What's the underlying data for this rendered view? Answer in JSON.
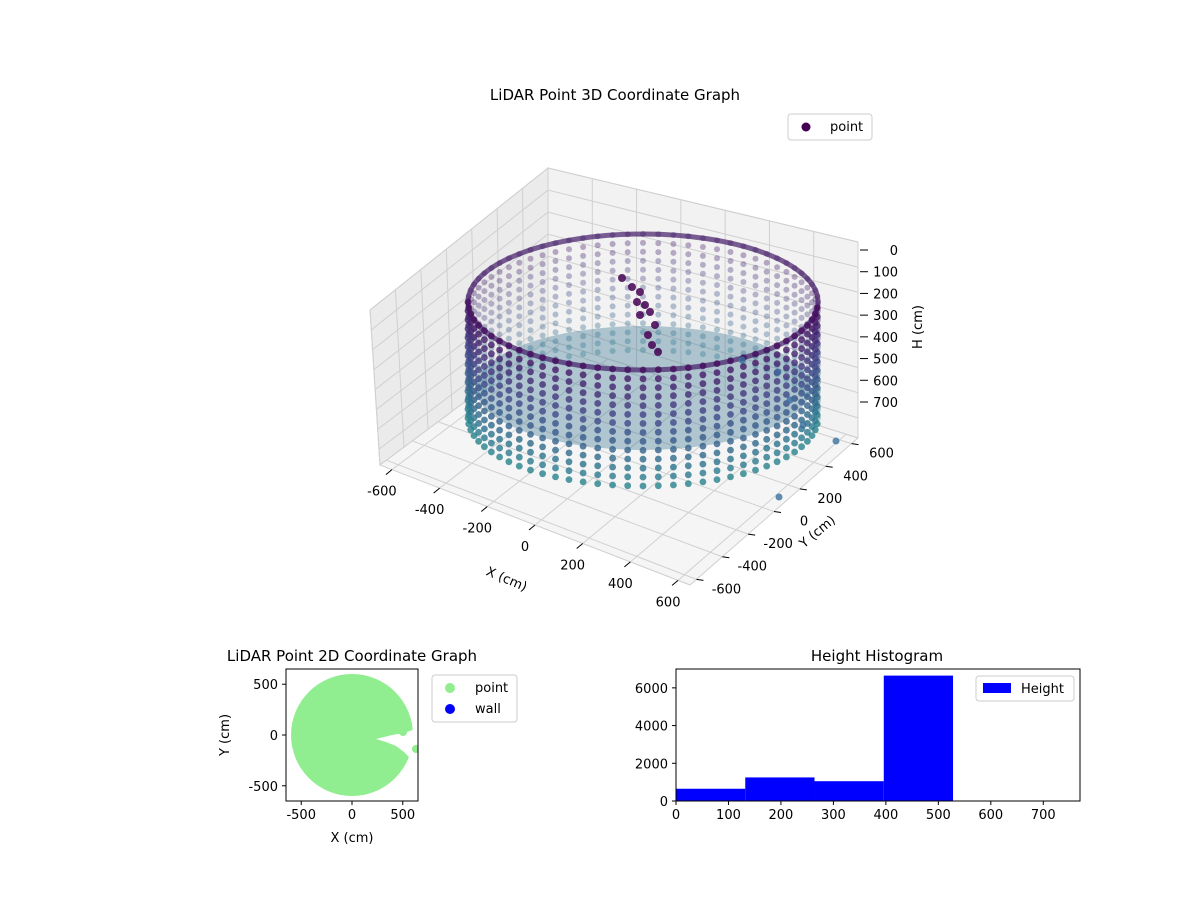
{
  "chart_data": [
    {
      "type": "scatter",
      "projection": "3d",
      "title": "LiDAR Point 3D Coordinate Graph",
      "xlabel": "X (cm)",
      "ylabel": "Y (cm)",
      "zlabel": "H (cm)",
      "xticks": [
        -600,
        -400,
        -200,
        0,
        200,
        400,
        600
      ],
      "yticks": [
        -600,
        -400,
        -200,
        0,
        200,
        400,
        600
      ],
      "zticks": [
        0,
        100,
        200,
        300,
        400,
        500,
        600,
        700
      ],
      "zlim": [
        780,
        0
      ],
      "z_inverted": true,
      "legend": {
        "labels": [
          "point"
        ],
        "placement": "top-right"
      },
      "series": [
        {
          "name": "point",
          "colormap": "viridis",
          "shape": "cylindrical wall",
          "radius": 650,
          "height_range": [
            0,
            520
          ]
        }
      ],
      "grid": true
    },
    {
      "type": "scatter",
      "title": "LiDAR Point 2D Coordinate Graph",
      "xlabel": "X (cm)",
      "ylabel": "Y (cm)",
      "xticks": [
        -500,
        0,
        500
      ],
      "yticks": [
        500,
        0,
        -500
      ],
      "xlim": [
        -650,
        650
      ],
      "ylim": [
        -650,
        650
      ],
      "legend": {
        "labels": [
          "point",
          "wall"
        ],
        "placement": "outside-right"
      },
      "series": [
        {
          "name": "point",
          "color": "#90ee90"
        },
        {
          "name": "wall",
          "color": "#0000ff"
        }
      ]
    },
    {
      "type": "bar",
      "title": "Height Histogram",
      "xticks": [
        0,
        100,
        200,
        300,
        400,
        500,
        600,
        700
      ],
      "yticks": [
        0,
        2000,
        4000,
        6000
      ],
      "xlim": [
        0,
        770
      ],
      "ylim": [
        0,
        7000
      ],
      "legend": {
        "labels": [
          "Height"
        ],
        "placement": "top-right"
      },
      "bins": [
        {
          "x0": 0,
          "x1": 132,
          "count": 650
        },
        {
          "x0": 132,
          "x1": 264,
          "count": 1250
        },
        {
          "x0": 264,
          "x1": 396,
          "count": 1050
        },
        {
          "x0": 396,
          "x1": 528,
          "count": 6650
        }
      ],
      "color": "#0000ff"
    }
  ]
}
